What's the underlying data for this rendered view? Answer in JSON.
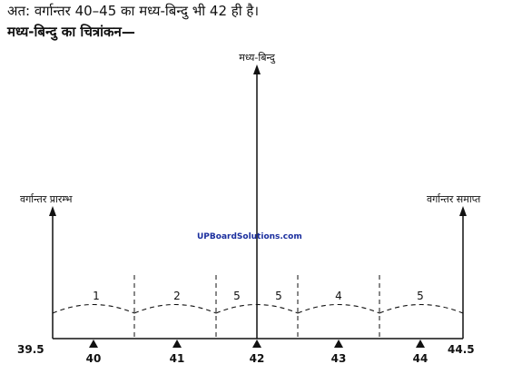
{
  "text": {
    "line1": "अत: वर्गान्तर 40–45 का मध्य-बिन्दु भी 42 ही है।",
    "heading": "मध्य-बिन्दु का चित्रांकन—"
  },
  "diagram": {
    "label_start": "वर्गान्तर प्रारम्भ",
    "label_mid": "मध्य-बिन्दु",
    "label_end": "वर्गान्तर समाप्त",
    "watermark": "UPBoardSolutions.com",
    "segment_values": [
      "1",
      "2",
      "5",
      "5",
      "4",
      "5"
    ],
    "start_value": "39.5",
    "end_value": "44.5",
    "ticks": [
      "40",
      "41",
      "42",
      "43",
      "44"
    ]
  }
}
